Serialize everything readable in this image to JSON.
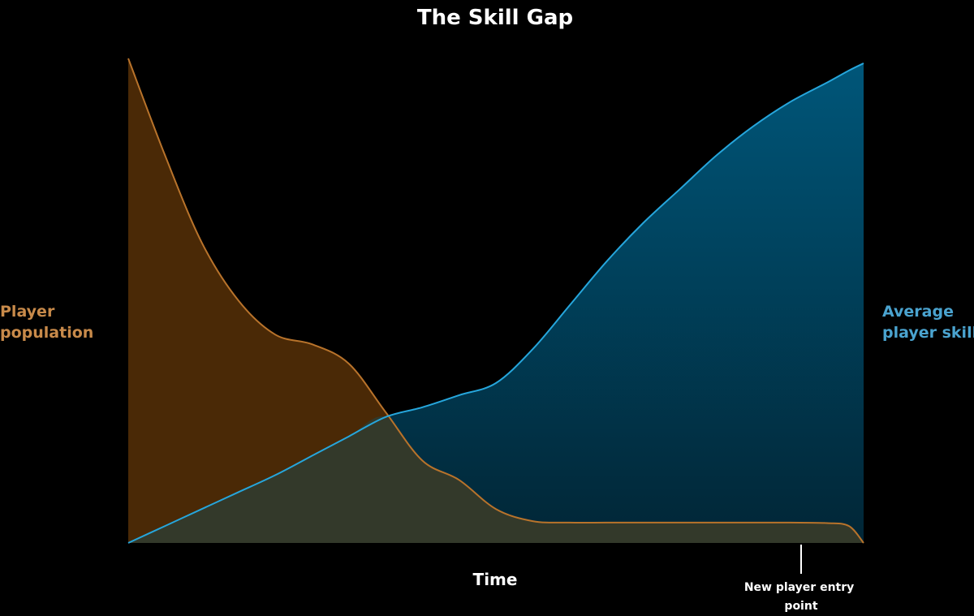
{
  "colors": {
    "background": "#000000",
    "population_line": "#b8732b",
    "population_fill": "#4a2906",
    "skill_line": "#26a6dc",
    "skill_fill_top": "#005679",
    "skill_fill_bottom": "#012636",
    "overlap_fill": "#33392a",
    "population_label": "#c88a4a",
    "skill_label": "#4aa3cf",
    "text": "#ffffff"
  },
  "chart_data": {
    "type": "area",
    "title": "The Skill Gap",
    "xlabel": "Time",
    "ylabel_left": "Player population",
    "ylabel_right": "Average player skill",
    "xlim": [
      0,
      100
    ],
    "ylim": [
      0,
      100
    ],
    "grid": false,
    "x": [
      0,
      5,
      10,
      15,
      20,
      25,
      30,
      35,
      40,
      45,
      50,
      55,
      60,
      65,
      70,
      75,
      80,
      85,
      90,
      95,
      98,
      100
    ],
    "series": [
      {
        "name": "Player population",
        "axis": "left",
        "values": [
          100,
          80,
          62,
          50,
          43,
          41,
          37,
          27,
          17,
          13,
          7,
          4.5,
          4.2,
          4.2,
          4.2,
          4.2,
          4.2,
          4.2,
          4.2,
          4.1,
          3.5,
          0
        ]
      },
      {
        "name": "Average player skill",
        "axis": "right",
        "values": [
          0,
          3.5,
          7,
          10.5,
          14,
          18,
          22,
          26,
          28,
          30.5,
          33,
          40,
          49,
          58,
          66,
          73,
          80,
          86,
          91,
          95,
          97.5,
          99
        ]
      }
    ],
    "annotations": [
      {
        "text": "New player entry point",
        "x": 91.5
      }
    ]
  }
}
